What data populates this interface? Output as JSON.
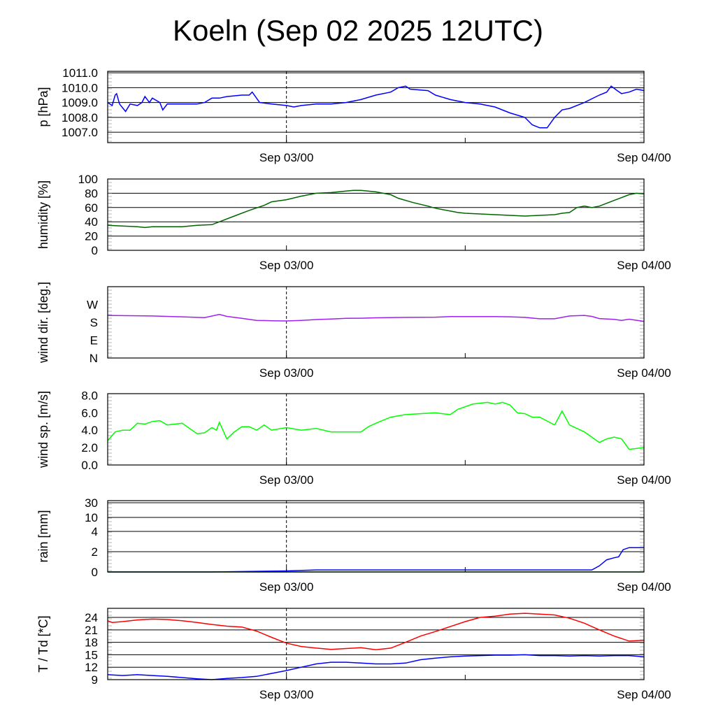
{
  "chart_data": {
    "type": "line",
    "title": "Koeln (Sep 02 2025 12UTC)",
    "x_unit": "hours since Sep 02 12UTC",
    "xlim": [
      0,
      36
    ],
    "x_ticks": [
      {
        "h": 12,
        "label": "Sep 03/00"
      },
      {
        "h": 24,
        "label": ""
      },
      {
        "h": 36,
        "label": "Sep 04/00"
      }
    ],
    "marker_hour": 12,
    "panels": [
      {
        "id": "pressure",
        "ylabel": "p [hPa]",
        "ylim": [
          1006.3,
          1011.1
        ],
        "yticks": [
          {
            "v": 1011,
            "label": "1011.0"
          },
          {
            "v": 1010,
            "label": "1010.0"
          },
          {
            "v": 1009,
            "label": "1009.0"
          },
          {
            "v": 1008,
            "label": "1008.0"
          },
          {
            "v": 1007,
            "label": "1007.0"
          }
        ],
        "grid": [
          1007,
          1008,
          1009,
          1010,
          1011
        ],
        "dashed": true,
        "series": [
          {
            "name": "pressure",
            "color": "#0000ff",
            "x": [
              0,
              0.3,
              0.5,
              0.6,
              0.8,
              1.2,
              1.5,
              2,
              2.3,
              2.5,
              2.8,
              3,
              3.5,
              3.7,
              4,
              5,
              6,
              6.5,
              7,
              7.5,
              8,
              9,
              9.5,
              9.7,
              10.2,
              11,
              12,
              12.5,
              13,
              14,
              15,
              16,
              17,
              18,
              19,
              19.5,
              20,
              20.3,
              21.5,
              22,
              23,
              24,
              25,
              26,
              27,
              28,
              28.5,
              29,
              29.5,
              30,
              30.5,
              31,
              32,
              33,
              33.5,
              33.8,
              34.2,
              34.5,
              35,
              35.5,
              36
            ],
            "y": [
              1009.0,
              1008.8,
              1009.5,
              1009.6,
              1008.9,
              1008.4,
              1008.9,
              1008.8,
              1009.0,
              1009.4,
              1009.0,
              1009.3,
              1009.0,
              1008.5,
              1008.9,
              1008.9,
              1008.9,
              1009.0,
              1009.3,
              1009.3,
              1009.4,
              1009.5,
              1009.5,
              1009.7,
              1009.0,
              1008.9,
              1008.8,
              1008.7,
              1008.8,
              1008.9,
              1008.9,
              1009.0,
              1009.2,
              1009.5,
              1009.7,
              1010.0,
              1010.1,
              1009.9,
              1009.8,
              1009.5,
              1009.2,
              1009.0,
              1008.9,
              1008.7,
              1008.3,
              1008.0,
              1007.5,
              1007.3,
              1007.3,
              1008.0,
              1008.5,
              1008.6,
              1009.0,
              1009.5,
              1009.7,
              1010.1,
              1009.8,
              1009.6,
              1009.7,
              1009.9,
              1009.8
            ]
          }
        ]
      },
      {
        "id": "humidity",
        "ylabel": "humidity [%]",
        "ylim": [
          0,
          100
        ],
        "yticks": [
          {
            "v": 100,
            "label": "100"
          },
          {
            "v": 80,
            "label": "80"
          },
          {
            "v": 60,
            "label": "60"
          },
          {
            "v": 40,
            "label": "40"
          },
          {
            "v": 20,
            "label": "20"
          },
          {
            "v": 0,
            "label": "0"
          }
        ],
        "grid": [
          20,
          40,
          60,
          80
        ],
        "dashed": false,
        "series": [
          {
            "name": "humidity",
            "color": "#006400",
            "x": [
              0,
              2,
              2.5,
              3,
              5,
              6,
              7,
              7.5,
              8.5,
              9.5,
              10.5,
              11,
              12,
              13,
              14,
              15,
              16,
              16.5,
              17,
              18,
              19,
              19.5,
              20.5,
              21.5,
              22,
              23.5,
              24,
              25,
              26,
              27,
              28,
              29,
              30,
              30.5,
              31,
              31.5,
              32,
              32.5,
              33,
              33.5,
              34,
              35,
              35.5,
              36
            ],
            "y": [
              35,
              33,
              32,
              33,
              33,
              35,
              36,
              40,
              48,
              56,
              63,
              68,
              71,
              76,
              80,
              81,
              83,
              84,
              84,
              82,
              78,
              73,
              67,
              62,
              59,
              53,
              52,
              51,
              50,
              49,
              48,
              49,
              50,
              52,
              53,
              60,
              62,
              60,
              62,
              66,
              70,
              78,
              80,
              79
            ]
          }
        ]
      },
      {
        "id": "wind-direction",
        "ylabel": "wind dir. [deg.]",
        "ylim": [
          0,
          360
        ],
        "yticks": [
          {
            "v": 270,
            "label": "W"
          },
          {
            "v": 180,
            "label": "S"
          },
          {
            "v": 90,
            "label": "E"
          },
          {
            "v": 0,
            "label": "N"
          }
        ],
        "grid": [],
        "dashed": true,
        "series": [
          {
            "name": "wind direction",
            "color": "#a020f0",
            "x": [
              0,
              3,
              5,
              6,
              6.5,
              7.5,
              8,
              9,
              10,
              11,
              12,
              13,
              14,
              15,
              16,
              17,
              18,
              20,
              22,
              23,
              24,
              26,
              27,
              28,
              29,
              30,
              31,
              32,
              32.5,
              33,
              34,
              34.5,
              35,
              36
            ],
            "y": [
              215,
              212,
              208,
              205,
              204,
              220,
              210,
              200,
              190,
              188,
              187,
              190,
              194,
              197,
              200,
              201,
              203,
              205,
              206,
              209,
              209,
              209,
              208,
              205,
              198,
              198,
              212,
              215,
              210,
              199,
              195,
              190,
              196,
              185
            ]
          }
        ]
      },
      {
        "id": "wind-speed",
        "ylabel": "wind sp. [m/s]",
        "ylim": [
          0,
          8.2
        ],
        "yticks": [
          {
            "v": 8,
            "label": "8.0"
          },
          {
            "v": 6,
            "label": "6.0"
          },
          {
            "v": 4,
            "label": "4.0"
          },
          {
            "v": 2,
            "label": "2.0"
          },
          {
            "v": 0,
            "label": "0.0"
          }
        ],
        "grid": [],
        "dashed": true,
        "series": [
          {
            "name": "wind speed",
            "color": "#00ff00",
            "x": [
              0,
              0.5,
              1,
              1.5,
              2,
              2.5,
              3,
              3.5,
              4,
              5,
              6,
              6.5,
              7,
              7.3,
              7.5,
              8,
              8.5,
              9,
              9.5,
              10,
              10.5,
              11,
              12,
              13,
              14,
              15,
              17,
              17.5,
              18,
              19,
              20,
              21,
              22,
              23,
              23.5,
              24.5,
              25.5,
              26,
              26.5,
              27,
              27.5,
              28,
              28.5,
              29,
              30,
              30.5,
              31,
              32,
              33,
              33.5,
              34,
              34.5,
              35,
              36
            ],
            "y": [
              2.8,
              3.8,
              4.0,
              4.0,
              4.8,
              4.7,
              5.0,
              5.1,
              4.6,
              4.8,
              3.6,
              3.7,
              4.3,
              4.0,
              4.9,
              3.0,
              3.8,
              4.4,
              4.4,
              4.0,
              4.6,
              4.0,
              4.3,
              4.0,
              4.2,
              3.8,
              3.8,
              4.4,
              4.8,
              5.5,
              5.8,
              5.9,
              6.0,
              5.8,
              6.4,
              7.0,
              7.2,
              7.0,
              7.2,
              6.9,
              6.0,
              5.9,
              5.5,
              5.5,
              4.6,
              6.2,
              4.6,
              3.8,
              2.6,
              3.0,
              3.2,
              3.0,
              1.8,
              2.0
            ]
          }
        ]
      },
      {
        "id": "rain",
        "ylabel": "rain [mm]",
        "ylim": [
          0,
          30
        ],
        "scale": "piecewise",
        "yticks": [
          {
            "v": 30,
            "label": "30"
          },
          {
            "v": 10,
            "label": "10"
          },
          {
            "v": 4,
            "label": "4"
          },
          {
            "v": 2,
            "label": "2"
          },
          {
            "v": 0,
            "label": "0"
          }
        ],
        "grid": [
          2,
          4,
          10,
          30
        ],
        "dashed": true,
        "series": [
          {
            "name": "accumulated rain",
            "color": "#0000ff",
            "x": [
              0,
              7,
              12,
              14,
              32.5,
              33,
              33.5,
              34,
              34.3,
              34.6,
              35,
              36
            ],
            "y": [
              0,
              0,
              0.1,
              0.2,
              0.2,
              0.6,
              1.2,
              1.4,
              1.5,
              2.2,
              2.4,
              2.4
            ]
          },
          {
            "name": "rain rate",
            "color": "#008000",
            "x": [
              0,
              36
            ],
            "y": [
              0,
              0
            ]
          }
        ]
      },
      {
        "id": "temperature",
        "ylabel": "T / Td [*C]",
        "ylim": [
          9,
          26.2
        ],
        "yticks": [
          {
            "v": 24,
            "label": "24"
          },
          {
            "v": 21,
            "label": "21"
          },
          {
            "v": 18,
            "label": "18"
          },
          {
            "v": 15,
            "label": "15"
          },
          {
            "v": 12,
            "label": "12"
          },
          {
            "v": 9,
            "label": "9"
          }
        ],
        "grid": [
          12,
          15,
          18,
          21,
          24
        ],
        "dashed": true,
        "series": [
          {
            "name": "T",
            "color": "#ff0000",
            "x": [
              0,
              0.3,
              1,
              2,
              3,
              4,
              5,
              6,
              7,
              8,
              9,
              10,
              11,
              12,
              13,
              14,
              15,
              16,
              17,
              18,
              19,
              20,
              21,
              22,
              23,
              24,
              25,
              26,
              27,
              28,
              29,
              30,
              31,
              32,
              33,
              34,
              35,
              36
            ],
            "y": [
              23.2,
              22.8,
              23.0,
              23.4,
              23.6,
              23.5,
              23.2,
              22.8,
              22.3,
              21.9,
              21.7,
              20.7,
              19.2,
              17.8,
              17.0,
              16.6,
              16.3,
              16.5,
              16.7,
              16.2,
              16.6,
              18.0,
              19.5,
              20.6,
              21.8,
              23.0,
              24.0,
              24.3,
              24.8,
              25.0,
              24.8,
              24.6,
              23.8,
              22.6,
              21.0,
              19.5,
              18.3,
              18.5
            ]
          },
          {
            "name": "Td",
            "color": "#0000ff",
            "x": [
              0,
              1,
              2,
              3,
              4,
              5,
              6,
              7,
              8,
              9,
              10,
              11,
              12,
              13,
              14,
              15,
              16,
              17,
              18,
              19,
              20,
              21,
              22,
              23,
              24,
              25,
              26,
              27,
              28,
              29,
              30,
              31,
              32,
              33,
              34,
              35,
              36
            ],
            "y": [
              10.2,
              10.0,
              10.2,
              10.0,
              9.8,
              9.5,
              9.2,
              9.0,
              9.3,
              9.5,
              9.8,
              10.5,
              11.2,
              12.0,
              12.8,
              13.2,
              13.2,
              13.0,
              12.8,
              12.8,
              13.0,
              13.8,
              14.2,
              14.5,
              14.7,
              14.8,
              14.9,
              14.9,
              15.0,
              14.8,
              14.8,
              14.7,
              14.8,
              14.7,
              14.8,
              14.8,
              14.5
            ]
          }
        ]
      }
    ]
  }
}
